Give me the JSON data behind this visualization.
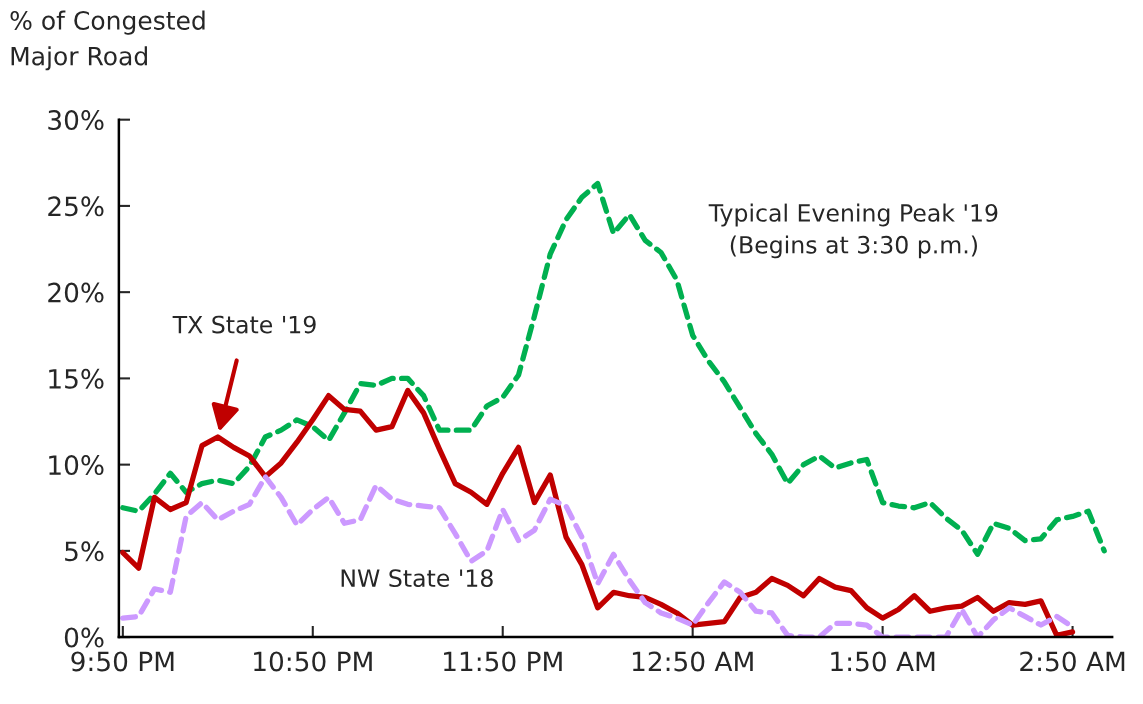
{
  "chart_data": {
    "type": "line",
    "ylabel": "% of Congested\nMajor Road",
    "categories": [
      "9:50 PM",
      null,
      null,
      null,
      null,
      null,
      null,
      null,
      null,
      null,
      null,
      null,
      "10:50 PM",
      null,
      null,
      null,
      null,
      null,
      null,
      null,
      null,
      null,
      null,
      null,
      "11:50 PM",
      null,
      null,
      null,
      null,
      null,
      null,
      null,
      null,
      null,
      null,
      null,
      "12:50 AM",
      null,
      null,
      null,
      null,
      null,
      null,
      null,
      null,
      null,
      null,
      null,
      "1:50 AM",
      null,
      null,
      null,
      null,
      null,
      null,
      null,
      null,
      null,
      null,
      null,
      "2:50 AM",
      null,
      null
    ],
    "series": [
      {
        "name": "Typical Evening Peak '19\n(Begins at 3:30 p.m.)",
        "color": "#00b050",
        "line_style": "dashed",
        "values": [
          7.5,
          7.3,
          8.3,
          9.5,
          8.4,
          8.9,
          9.1,
          8.9,
          9.9,
          11.6,
          12.0,
          12.6,
          12.2,
          11.4,
          13.0,
          14.7,
          14.6,
          15.0,
          15.0,
          14.0,
          12.0,
          12.0,
          12.0,
          13.4,
          13.9,
          15.2,
          18.6,
          22.2,
          24.2,
          25.5,
          26.3,
          23.4,
          24.5,
          23.0,
          22.3,
          20.7,
          17.5,
          16.0,
          14.8,
          13.3,
          11.8,
          10.6,
          8.9,
          10.0,
          10.5,
          9.8,
          10.1,
          10.3,
          7.8,
          7.6,
          7.5,
          7.8,
          6.9,
          6.2,
          4.8,
          6.6,
          6.3,
          5.6,
          5.7,
          6.8,
          7.0,
          7.3,
          5.0
        ]
      },
      {
        "name": "TX State '19",
        "color": "#c00000",
        "line_style": "solid",
        "values": [
          4.9,
          4.0,
          8.1,
          7.4,
          7.8,
          11.1,
          11.6,
          11.0,
          10.5,
          9.3,
          10.1,
          11.3,
          12.6,
          14.0,
          13.2,
          13.1,
          12.0,
          12.2,
          14.3,
          13.0,
          10.9,
          8.9,
          8.4,
          7.7,
          9.5,
          11.0,
          7.8,
          9.4,
          5.8,
          4.2,
          1.7,
          2.6,
          2.4,
          2.3,
          1.9,
          1.4,
          0.7,
          0.8,
          0.9,
          2.3,
          2.6,
          3.4,
          3.0,
          2.4,
          3.4,
          2.9,
          2.7,
          1.7,
          1.1,
          1.6,
          2.4,
          1.5,
          1.7,
          1.8,
          2.3,
          1.5,
          2.0,
          1.9,
          2.1,
          0.1,
          0.3,
          null,
          null
        ]
      },
      {
        "name": "NW State '18",
        "color": "#cc99ff",
        "line_style": "dashed",
        "values": [
          1.1,
          1.2,
          2.8,
          2.6,
          7.0,
          7.8,
          6.8,
          7.3,
          7.7,
          9.3,
          8.1,
          6.5,
          7.4,
          8.1,
          6.6,
          6.8,
          8.8,
          8.0,
          7.7,
          7.6,
          7.5,
          6.0,
          4.4,
          5.0,
          7.4,
          5.6,
          6.2,
          8.0,
          7.6,
          5.8,
          3.1,
          4.8,
          3.3,
          2.0,
          1.4,
          1.1,
          0.7,
          2.0,
          3.2,
          2.6,
          1.5,
          1.4,
          0.1,
          0.0,
          0.0,
          0.8,
          0.8,
          0.7,
          0.0,
          0.0,
          0.0,
          0.0,
          0.0,
          1.6,
          0.0,
          1.0,
          1.7,
          1.2,
          0.7,
          1.2,
          0.6,
          null,
          null
        ]
      }
    ],
    "ylim": [
      0,
      30
    ],
    "yticks": [
      {
        "value": 0,
        "label": "0%"
      },
      {
        "value": 5,
        "label": "5%"
      },
      {
        "value": 10,
        "label": "10%"
      },
      {
        "value": 15,
        "label": "15%"
      },
      {
        "value": 20,
        "label": "20%"
      },
      {
        "value": 25,
        "label": "25%"
      },
      {
        "value": 30,
        "label": "30%"
      }
    ],
    "grid": false,
    "legend": false
  }
}
